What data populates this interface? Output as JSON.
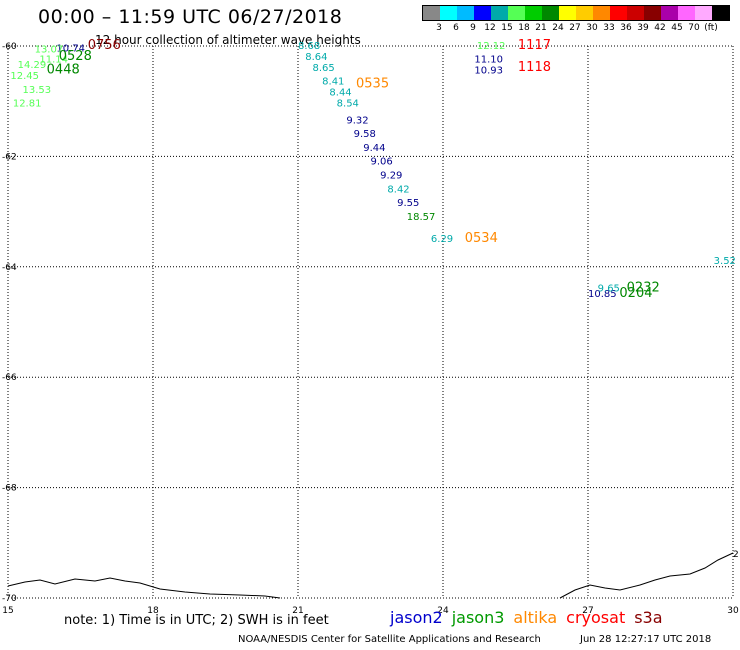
{
  "header": {
    "title": "00:00 – 11:59 UTC 06/27/2018",
    "subtitle": "12 hour collection of altimeter wave heights"
  },
  "color_scale": {
    "colors": [
      "#888888",
      "#00ffff",
      "#00bbff",
      "#0000ff",
      "#00aaaa",
      "#55ff55",
      "#00cc00",
      "#008800",
      "#ffff00",
      "#ffcc00",
      "#ff8800",
      "#ff0000",
      "#cc0000",
      "#880000",
      "#aa00aa",
      "#ff66ff",
      "#ffaaff",
      "#000000"
    ],
    "ticks": [
      "3",
      "6",
      "9",
      "12",
      "15",
      "18",
      "21",
      "24",
      "27",
      "30",
      "33",
      "36",
      "39",
      "42",
      "45",
      "70"
    ],
    "unit": "(ft)"
  },
  "axes": {
    "x_ticks": [
      "15",
      "18",
      "21",
      "24",
      "27",
      "30"
    ],
    "y_ticks": [
      "-60",
      "-62",
      "-64",
      "-66",
      "-68",
      "-70"
    ]
  },
  "labels": [
    {
      "text": "8.68",
      "lon": 21.0,
      "lat": -60.05,
      "color": "#00aaaa"
    },
    {
      "text": "8.64",
      "lon": 21.15,
      "lat": -60.25,
      "color": "#00aaaa"
    },
    {
      "text": "8.65",
      "lon": 21.3,
      "lat": -60.45,
      "color": "#00aaaa"
    },
    {
      "text": "8.41",
      "lon": 21.5,
      "lat": -60.7,
      "color": "#00aaaa"
    },
    {
      "text": "8.44",
      "lon": 21.65,
      "lat": -60.9,
      "color": "#00aaaa"
    },
    {
      "text": "8.54",
      "lon": 21.8,
      "lat": -61.1,
      "color": "#00aaaa"
    },
    {
      "text": "0535",
      "lon": 22.2,
      "lat": -60.75,
      "color": "#ff8800",
      "big": true
    },
    {
      "text": "9.32",
      "lon": 22.0,
      "lat": -61.4,
      "color": "#00008b"
    },
    {
      "text": "9.58",
      "lon": 22.15,
      "lat": -61.65,
      "color": "#00008b"
    },
    {
      "text": "9.44",
      "lon": 22.35,
      "lat": -61.9,
      "color": "#00008b"
    },
    {
      "text": "9.06",
      "lon": 22.5,
      "lat": -62.15,
      "color": "#00008b"
    },
    {
      "text": "9.29",
      "lon": 22.7,
      "lat": -62.4,
      "color": "#00008b"
    },
    {
      "text": "8.42",
      "lon": 22.85,
      "lat": -62.65,
      "color": "#00aaaa"
    },
    {
      "text": "9.55",
      "lon": 23.05,
      "lat": -62.9,
      "color": "#00008b"
    },
    {
      "text": "18.57",
      "lon": 23.25,
      "lat": -63.15,
      "color": "#008800"
    },
    {
      "text": "6.29",
      "lon": 23.75,
      "lat": -63.55,
      "color": "#00aaaa"
    },
    {
      "text": "0534",
      "lon": 24.45,
      "lat": -63.55,
      "color": "#ff8800",
      "big": true
    },
    {
      "text": "12.12",
      "lon": 24.7,
      "lat": -60.05,
      "color": "#55ff55"
    },
    {
      "text": "11.10",
      "lon": 24.65,
      "lat": -60.3,
      "color": "#00008b"
    },
    {
      "text": "10.93",
      "lon": 24.65,
      "lat": -60.5,
      "color": "#00008b"
    },
    {
      "text": "1117",
      "lon": 25.55,
      "lat": -60.05,
      "color": "#ff0000",
      "big": true
    },
    {
      "text": "1118",
      "lon": 25.55,
      "lat": -60.45,
      "color": "#ff0000",
      "big": true
    },
    {
      "text": "10.74",
      "lon": 16.0,
      "lat": -60.1,
      "color": "#00008b"
    },
    {
      "text": "0756",
      "lon": 16.65,
      "lat": -60.05,
      "color": "#880000",
      "big": true
    },
    {
      "text": "13.07",
      "lon": 15.55,
      "lat": -60.12,
      "color": "#55ff55"
    },
    {
      "text": "11.14",
      "lon": 15.65,
      "lat": -60.3,
      "color": "#55ff55"
    },
    {
      "text": "0528",
      "lon": 16.05,
      "lat": -60.25,
      "color": "#008800",
      "big": true
    },
    {
      "text": "14.29",
      "lon": 15.2,
      "lat": -60.4,
      "color": "#55ff55"
    },
    {
      "text": "12.45",
      "lon": 15.05,
      "lat": -60.6,
      "color": "#55ff55"
    },
    {
      "text": "13.53",
      "lon": 15.3,
      "lat": -60.85,
      "color": "#55ff55"
    },
    {
      "text": "12.81",
      "lon": 15.1,
      "lat": -61.1,
      "color": "#55ff55"
    },
    {
      "text": "0448",
      "lon": 15.8,
      "lat": -60.5,
      "color": "#008800",
      "big": true
    },
    {
      "text": "10.85",
      "lon": 27.0,
      "lat": -64.55,
      "color": "#00008b"
    },
    {
      "text": "9.65",
      "lon": 27.2,
      "lat": -64.45,
      "color": "#00aaaa"
    },
    {
      "text": "0232",
      "lon": 27.8,
      "lat": -64.45,
      "color": "#008800",
      "big": true
    },
    {
      "text": "0204",
      "lon": 27.65,
      "lat": -64.55,
      "color": "#008800",
      "big": true
    },
    {
      "text": "3.52",
      "lon": 29.6,
      "lat": -63.95,
      "color": "#00aaaa"
    }
  ],
  "footer": {
    "note": "note:  1) Time is in UTC;  2) SWH is in feet",
    "legend": [
      {
        "name": "jason2",
        "color": "#0000cc"
      },
      {
        "name": "jason3",
        "color": "#009900"
      },
      {
        "name": "altika",
        "color": "#ff8800"
      },
      {
        "name": "cryosat",
        "color": "#ff0000"
      },
      {
        "name": "s3a",
        "color": "#880000"
      }
    ],
    "credit": "NOAA/NESDIS Center for Satellite Applications and Research",
    "timestamp": "Jun 28 12:27:17 UTC 2018",
    "contour_label": "2"
  }
}
